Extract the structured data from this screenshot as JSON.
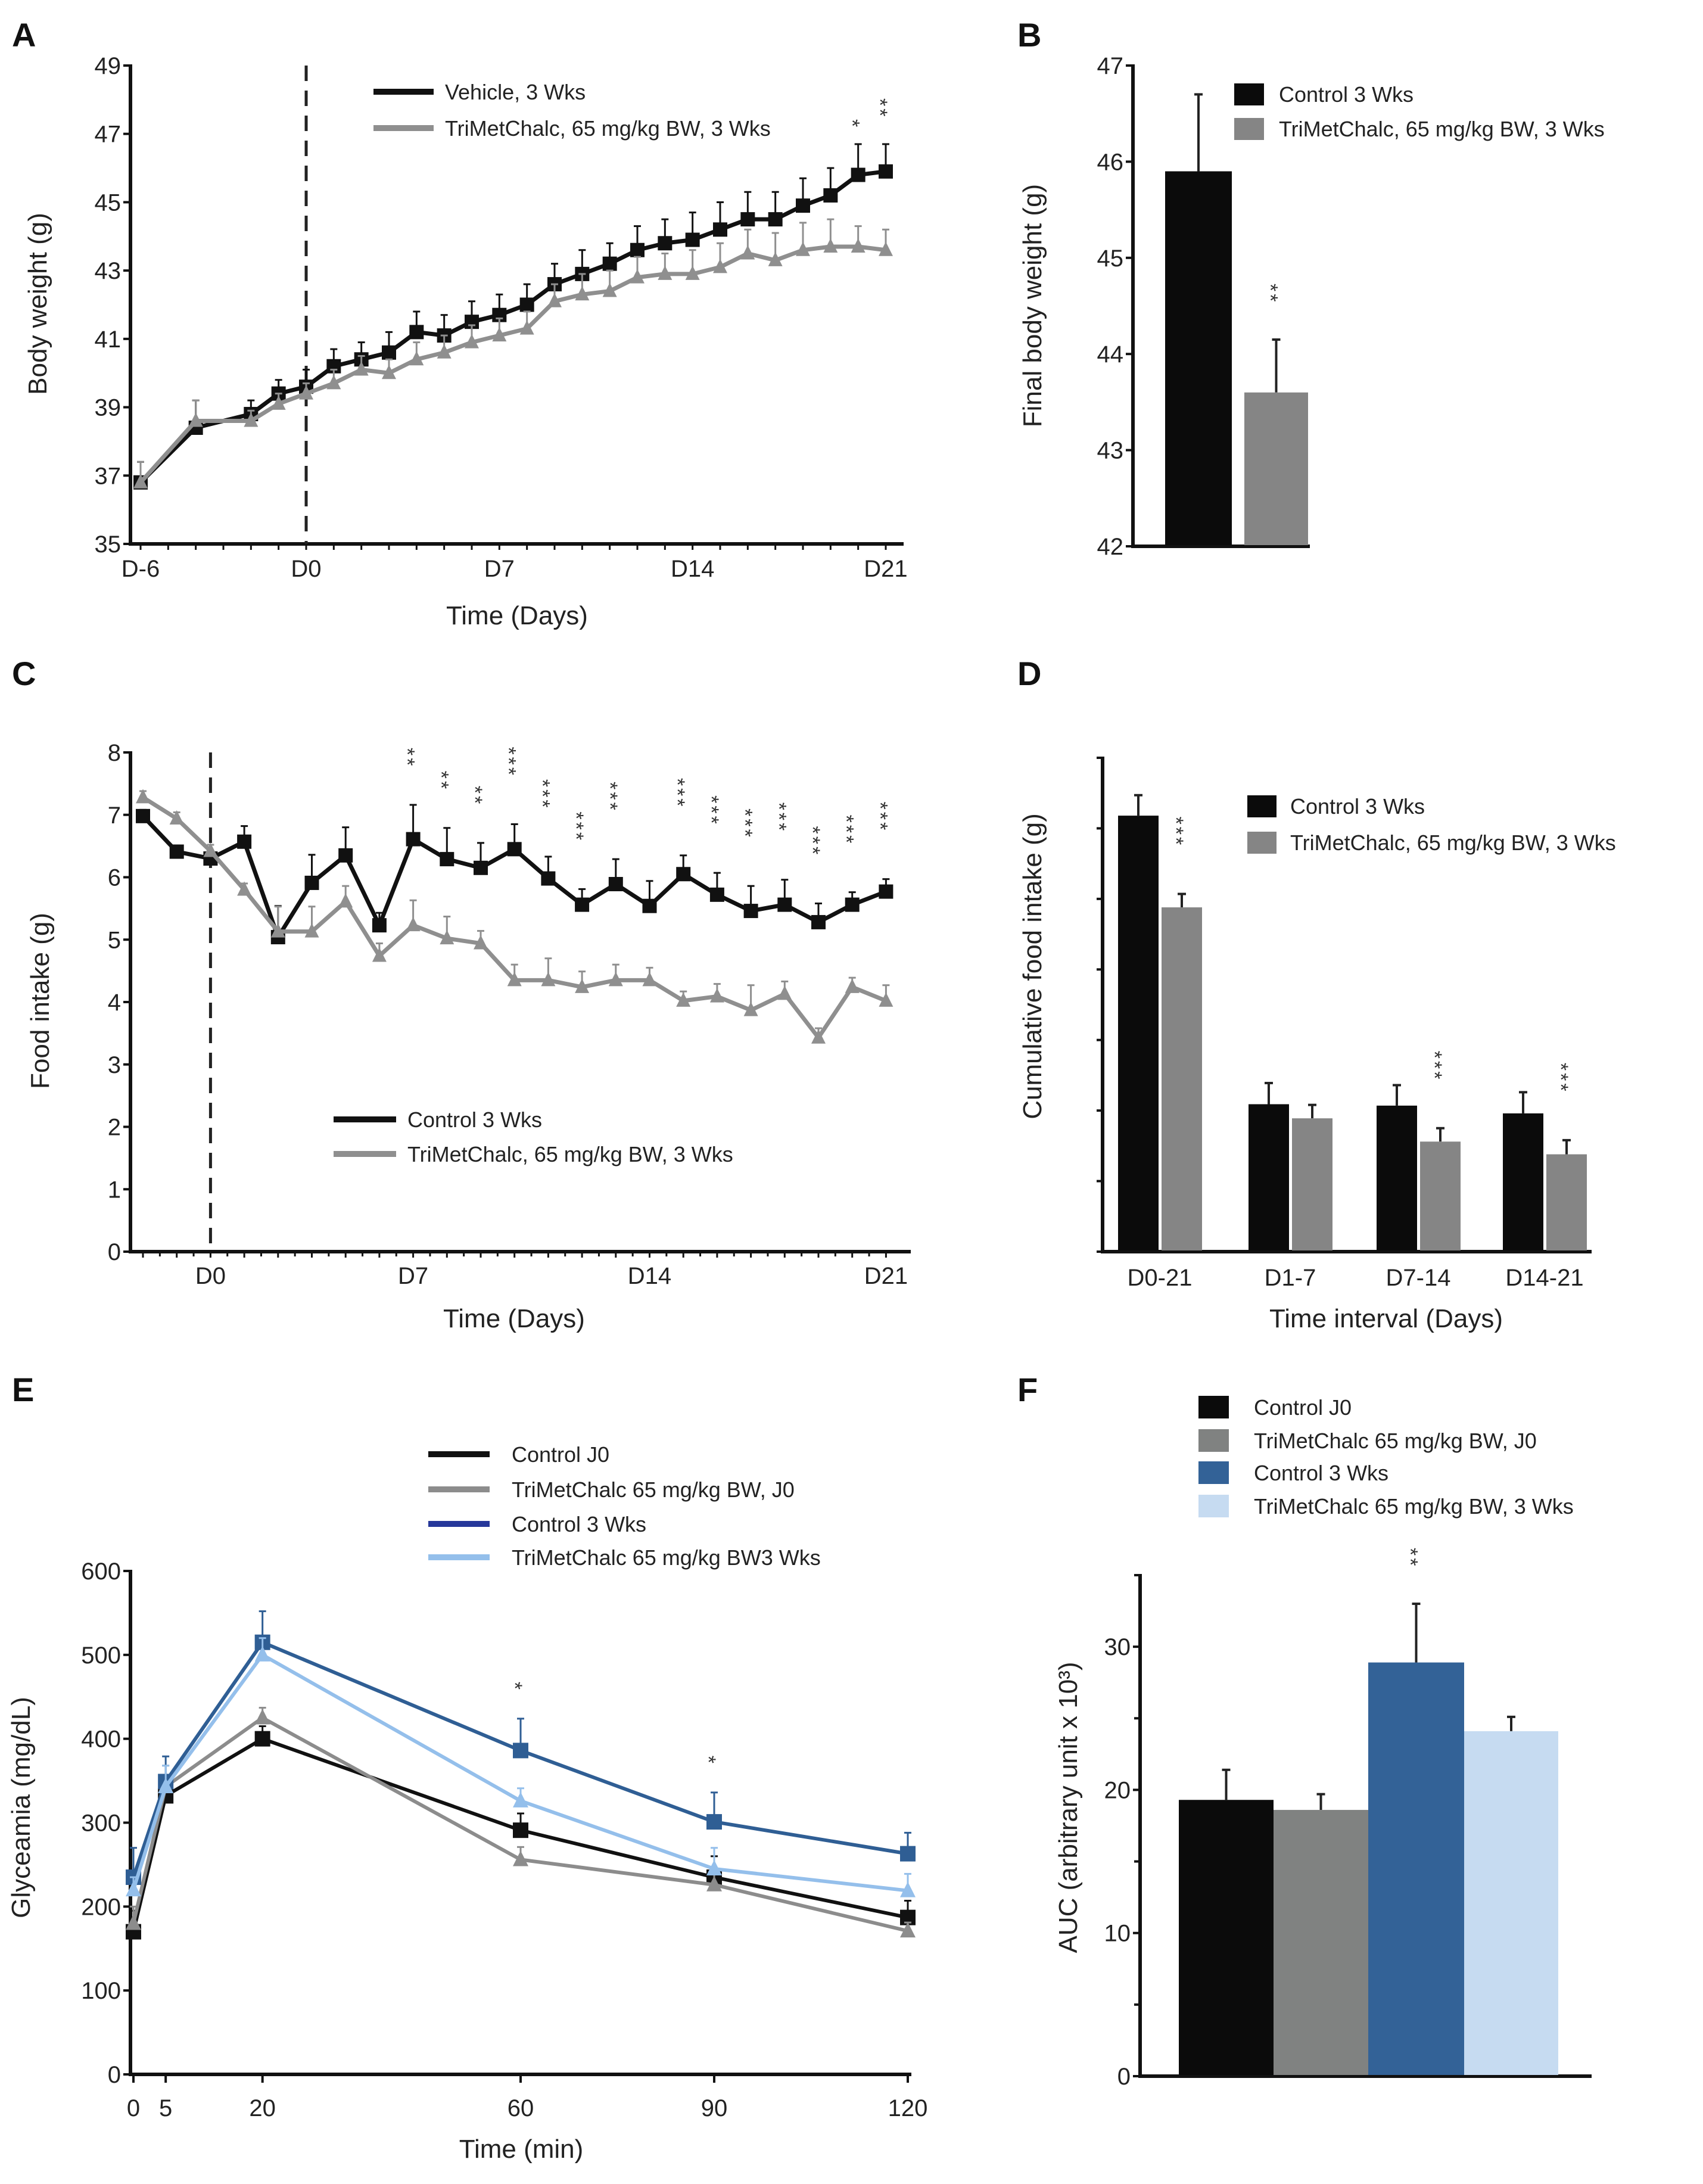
{
  "chart_data": [
    {
      "panel": "A",
      "type": "line",
      "xlabel": "Time (Days)",
      "ylabel": "Body weight (g)",
      "xlim": [
        -6,
        21
      ],
      "ylim": [
        35,
        49
      ],
      "yticks": [
        35,
        37,
        39,
        41,
        43,
        45,
        47,
        49
      ],
      "xtick_labels": [
        {
          "x": -6,
          "label": "D-6"
        },
        {
          "x": 0,
          "label": "D0"
        },
        {
          "x": 7,
          "label": "D7"
        },
        {
          "x": 14,
          "label": "D14"
        },
        {
          "x": 21,
          "label": "D21"
        }
      ],
      "reference_line_x": 0,
      "series": [
        {
          "name": "Vehicle, 3 Wks",
          "color": "#111111",
          "marker": "square",
          "x": [
            -6,
            -4,
            -2,
            -1,
            0,
            1,
            2,
            3,
            4,
            5,
            6,
            7,
            8,
            9,
            10,
            11,
            12,
            13,
            14,
            15,
            16,
            17,
            18,
            19,
            20,
            21
          ],
          "y": [
            36.8,
            38.4,
            38.8,
            39.4,
            39.6,
            40.2,
            40.4,
            40.6,
            41.2,
            41.1,
            41.5,
            41.7,
            42.0,
            42.6,
            42.9,
            43.2,
            43.6,
            43.8,
            43.9,
            44.2,
            44.5,
            44.5,
            44.9,
            45.2,
            45.8,
            45.9
          ],
          "err": [
            0.6,
            0.8,
            0.4,
            0.4,
            0.5,
            0.5,
            0.5,
            0.6,
            0.6,
            0.6,
            0.6,
            0.6,
            0.6,
            0.6,
            0.7,
            0.6,
            0.7,
            0.7,
            0.8,
            0.8,
            0.8,
            0.8,
            0.8,
            0.8,
            0.9,
            0.8
          ]
        },
        {
          "name": "TriMetChalc, 65 mg/kg BW, 3 Wks",
          "color": "#8f8f8f",
          "marker": "triangle",
          "x": [
            -6,
            -4,
            -2,
            -1,
            0,
            1,
            2,
            3,
            4,
            5,
            6,
            7,
            8,
            9,
            10,
            11,
            12,
            13,
            14,
            15,
            16,
            17,
            18,
            19,
            20,
            21
          ],
          "y": [
            36.8,
            38.6,
            38.6,
            39.1,
            39.4,
            39.7,
            40.1,
            40.0,
            40.4,
            40.6,
            40.9,
            41.1,
            41.3,
            42.1,
            42.3,
            42.4,
            42.8,
            42.9,
            42.9,
            43.1,
            43.5,
            43.3,
            43.6,
            43.7,
            43.7,
            43.6
          ],
          "err": [
            0.6,
            0.6,
            0.3,
            0.3,
            0.3,
            0.4,
            0.4,
            0.4,
            0.5,
            0.5,
            0.5,
            0.5,
            0.5,
            0.5,
            0.6,
            0.6,
            0.6,
            0.6,
            0.7,
            0.7,
            0.7,
            0.8,
            0.8,
            0.8,
            0.6,
            0.6
          ]
        }
      ],
      "significance": [
        {
          "x": 20,
          "stars": "*"
        },
        {
          "x": 21,
          "stars": "**"
        }
      ]
    },
    {
      "panel": "B",
      "type": "bar",
      "xlabel": "",
      "ylabel": "Final body weight (g)",
      "ylim": [
        42,
        47
      ],
      "yticks": [
        42,
        43,
        44,
        45,
        46,
        47
      ],
      "series": [
        {
          "name": "Control 3 Wks",
          "color": "#0b0b0b",
          "values": [
            45.9
          ],
          "err": [
            0.8
          ]
        },
        {
          "name": "TriMetChalc, 65 mg/kg BW, 3 Wks",
          "color": "#858585",
          "values": [
            43.6
          ],
          "err": [
            0.55
          ]
        }
      ],
      "significance": [
        {
          "category": 0,
          "series": 1,
          "stars": "**"
        }
      ]
    },
    {
      "panel": "C",
      "type": "line",
      "xlabel": "Time (Days)",
      "ylabel": "Food intake (g)",
      "ylim": [
        0,
        8
      ],
      "yticks": [
        0,
        1,
        2,
        3,
        4,
        5,
        6,
        7,
        8
      ],
      "xtick_labels": [
        {
          "x": 0,
          "label": "D0"
        },
        {
          "x": 7,
          "label": "D7"
        },
        {
          "x": 14,
          "label": "D14"
        },
        {
          "x": 21,
          "label": "D21"
        }
      ],
      "reference_line_x": 0,
      "series": [
        {
          "name": "Control 3 Wks",
          "color": "#111111",
          "marker": "square",
          "x": [
            -2,
            -1,
            0,
            1,
            2,
            3,
            4,
            5,
            7,
            8,
            9,
            10,
            11,
            12,
            13,
            14,
            15,
            16,
            17,
            18,
            19,
            20,
            21
          ],
          "y": [
            6.98,
            6.41,
            6.3,
            6.57,
            5.04,
            5.91,
            6.35,
            5.23,
            6.61,
            6.29,
            6.15,
            6.45,
            5.98,
            5.56,
            5.89,
            5.54,
            6.05,
            5.72,
            5.46,
            5.56,
            5.28,
            5.56,
            5.77
          ],
          "err": [
            0.1,
            0.1,
            0.1,
            0.25,
            0.5,
            0.45,
            0.45,
            0.2,
            0.55,
            0.5,
            0.4,
            0.4,
            0.35,
            0.25,
            0.4,
            0.4,
            0.3,
            0.35,
            0.4,
            0.4,
            0.3,
            0.2,
            0.2
          ]
        },
        {
          "name": "TriMetChalc, 65 mg/kg BW, 3 Wks",
          "color": "#8f8f8f",
          "marker": "triangle",
          "x": [
            -2,
            -1,
            0,
            1,
            2,
            3,
            4,
            5,
            7,
            8,
            9,
            10,
            11,
            12,
            13,
            14,
            15,
            16,
            17,
            18,
            19,
            20,
            21
          ],
          "y": [
            7.28,
            6.94,
            6.42,
            5.8,
            5.13,
            5.13,
            5.61,
            4.74,
            5.23,
            5.02,
            4.94,
            4.35,
            4.35,
            4.24,
            4.35,
            4.35,
            4.02,
            4.09,
            3.87,
            4.13,
            3.43,
            4.24,
            4.02
          ],
          "err": [
            0.1,
            0.1,
            0.1,
            0.1,
            0.4,
            0.4,
            0.25,
            0.2,
            0.4,
            0.35,
            0.2,
            0.25,
            0.35,
            0.25,
            0.25,
            0.2,
            0.15,
            0.2,
            0.4,
            0.2,
            0.15,
            0.15,
            0.25
          ]
        }
      ],
      "significance": [
        {
          "x": 7,
          "stars": "**"
        },
        {
          "x": 8,
          "stars": "**"
        },
        {
          "x": 9,
          "stars": "**"
        },
        {
          "x": 10,
          "stars": "***"
        },
        {
          "x": 11,
          "stars": "***"
        },
        {
          "x": 12,
          "stars": "***"
        },
        {
          "x": 13,
          "stars": "***"
        },
        {
          "x": 15,
          "stars": "***"
        },
        {
          "x": 16,
          "stars": "***"
        },
        {
          "x": 17,
          "stars": "***"
        },
        {
          "x": 18,
          "stars": "***"
        },
        {
          "x": 19,
          "stars": "***"
        },
        {
          "x": 20,
          "stars": "***"
        },
        {
          "x": 21,
          "stars": "***"
        }
      ]
    },
    {
      "panel": "D",
      "type": "bar",
      "xlabel": "Time interval (Days)",
      "ylabel": "Cumulative food intake (g)",
      "ylim": [
        0,
        7
      ],
      "yticks_unlabeled": 8,
      "categories": [
        "D0-21",
        "D1-7",
        "D7-14",
        "D14-21"
      ],
      "series": [
        {
          "name": "Control 3 Wks",
          "color": "#0b0b0b",
          "values": [
            6.18,
            2.09,
            2.07,
            1.96
          ],
          "err": [
            0.29,
            0.3,
            0.29,
            0.3
          ]
        },
        {
          "name": "TriMetChalc, 65 mg/kg BW, 3 Wks",
          "color": "#858585",
          "values": [
            4.88,
            1.89,
            1.56,
            1.38
          ],
          "err": [
            0.19,
            0.19,
            0.19,
            0.2
          ]
        }
      ],
      "significance": [
        {
          "category": 0,
          "series": 1,
          "stars": "***"
        },
        {
          "category": 2,
          "series": 1,
          "stars": "***"
        },
        {
          "category": 3,
          "series": 1,
          "stars": "***"
        }
      ]
    },
    {
      "panel": "E",
      "type": "line",
      "xlabel": "Time (min)",
      "ylabel": "Glyceamia (mg/dL)",
      "xlim": [
        0,
        120
      ],
      "ylim": [
        0,
        600
      ],
      "yticks": [
        0,
        100,
        200,
        300,
        400,
        500,
        600
      ],
      "xtick_labels": [
        {
          "x": 0,
          "label": "0"
        },
        {
          "x": 5,
          "label": "5"
        },
        {
          "x": 20,
          "label": "20"
        },
        {
          "x": 60,
          "label": "60"
        },
        {
          "x": 90,
          "label": "90"
        },
        {
          "x": 120,
          "label": "120"
        }
      ],
      "series": [
        {
          "name": "Control J0",
          "color": "#111111",
          "marker": "square",
          "x": [
            0,
            5,
            20,
            60,
            90,
            120
          ],
          "y": [
            170,
            332,
            400,
            291,
            235,
            187
          ],
          "err": [
            25,
            25,
            15,
            20,
            25,
            20
          ]
        },
        {
          "name": "TriMetChalc 65 mg/kg BW, J0",
          "color": "#8c8c8c",
          "marker": "triangle",
          "x": [
            0,
            5,
            20,
            60,
            90,
            120
          ],
          "y": [
            180,
            343,
            425,
            256,
            226,
            171
          ],
          "err": [
            20,
            25,
            12,
            15,
            15,
            10
          ]
        },
        {
          "name": "Control 3 Wks",
          "color": "#2f5e94",
          "marker": "square",
          "x": [
            0,
            5,
            20,
            60,
            90,
            120
          ],
          "y": [
            235,
            349,
            515,
            386,
            301,
            263
          ],
          "err": [
            35,
            30,
            37,
            38,
            35,
            25
          ]
        },
        {
          "name": "TriMetChalc 65 mg/kg BW3 Wks",
          "color": "#94bfeb",
          "marker": "triangle",
          "x": [
            0,
            5,
            20,
            60,
            90,
            120
          ],
          "y": [
            220,
            343,
            500,
            326,
            245,
            219
          ],
          "err": [
            15,
            25,
            20,
            15,
            25,
            20
          ]
        }
      ],
      "legend_line_colors": [
        "#111111",
        "#8c8c8c",
        "#26389a",
        "#94bfeb"
      ],
      "significance": [
        {
          "x": 60,
          "stars": "*"
        },
        {
          "x": 90,
          "stars": "*"
        }
      ]
    },
    {
      "panel": "F",
      "type": "bar",
      "xlabel": "",
      "ylabel": "AUC (arbitrary unit x 10³)",
      "ylim": [
        0,
        35
      ],
      "yticks": [
        0,
        10,
        20,
        30
      ],
      "series": [
        {
          "name": "Control J0",
          "color": "#0b0b0b",
          "values": [
            19.3
          ],
          "err": [
            2.1
          ]
        },
        {
          "name": "TriMetChalc 65 mg/kg BW, J0",
          "color": "#808281",
          "values": [
            18.6
          ],
          "err": [
            1.1
          ]
        },
        {
          "name": "Control 3 Wks",
          "color": "#336297",
          "values": [
            28.9
          ],
          "err": [
            4.1
          ]
        },
        {
          "name": "TriMetChalc 65 mg/kg BW, 3 Wks",
          "color": "#c6dbf1",
          "values": [
            24.1
          ],
          "err": [
            1.0
          ]
        }
      ],
      "significance": [
        {
          "category": 0,
          "series": 2,
          "stars": "**"
        }
      ]
    }
  ]
}
